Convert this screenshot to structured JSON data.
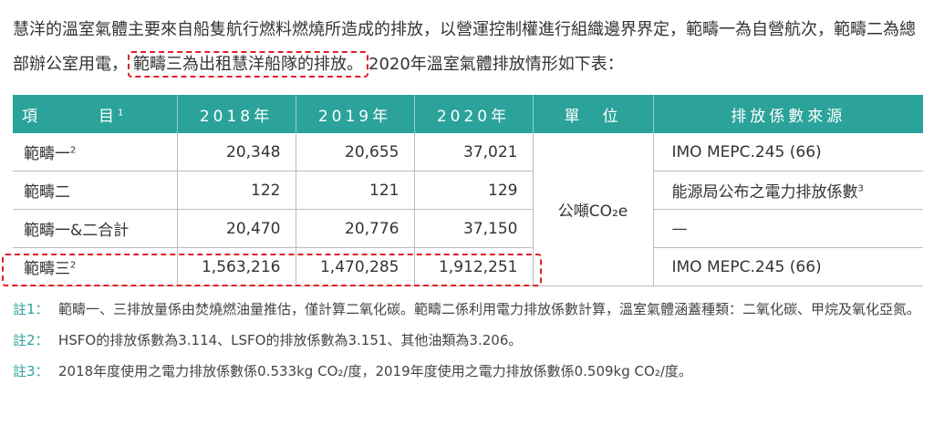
{
  "intro": {
    "part1": "慧洋的溫室氣體主要來自船隻航行燃料燃燒所造成的排放，以營運控制權進行組織邊界界定，範疇一為自營航次，範疇二為總部辦公室用電，",
    "highlight": "範疇三為出租慧洋船隊的排放。",
    "part2": "2020年溫室氣體排放情形如下表："
  },
  "table": {
    "headers": {
      "item": "項　　　目",
      "item_note": "1",
      "y2018": "2018年",
      "y2019": "2019年",
      "y2020": "2020年",
      "unit": "單　位",
      "source": "排放係數來源"
    },
    "rows": [
      {
        "label": "範疇一",
        "note": "2",
        "y2018": "20,348",
        "y2019": "20,655",
        "y2020": "37,021",
        "source": "IMO MEPC.245 (66)",
        "source_note": ""
      },
      {
        "label": "範疇二",
        "note": "",
        "y2018": "122",
        "y2019": "121",
        "y2020": "129",
        "source": "能源局公布之電力排放係數",
        "source_note": "3"
      },
      {
        "label": "範疇一&二合計",
        "note": "",
        "y2018": "20,470",
        "y2019": "20,776",
        "y2020": "37,150",
        "source": "—",
        "source_note": ""
      },
      {
        "label": "範疇三",
        "note": "2",
        "y2018": "1,563,216",
        "y2019": "1,470,285",
        "y2020": "1,912,251",
        "source": "IMO MEPC.245 (66)",
        "source_note": ""
      }
    ],
    "unit_text": "公噸CO₂e"
  },
  "notes": [
    {
      "label": "註1：",
      "text": "範疇一、三排放量係由焚燒燃油量推估，僅計算二氧化碳。範疇二係利用電力排放係數計算，溫室氣體涵蓋種類：二氧化碳、甲烷及氧化亞氮。"
    },
    {
      "label": "註2：",
      "text": "HSFO的排放係數為3.114、LSFO的排放係數為3.151、其他油類為3.206。"
    },
    {
      "label": "註3：",
      "text": "2018年度使用之電力排放係數係0.533kg CO₂/度，2019年度使用之電力排放係數係0.509kg CO₂/度。"
    }
  ],
  "colors": {
    "accent": "#2ba39a",
    "highlight_border": "#e0202a"
  }
}
